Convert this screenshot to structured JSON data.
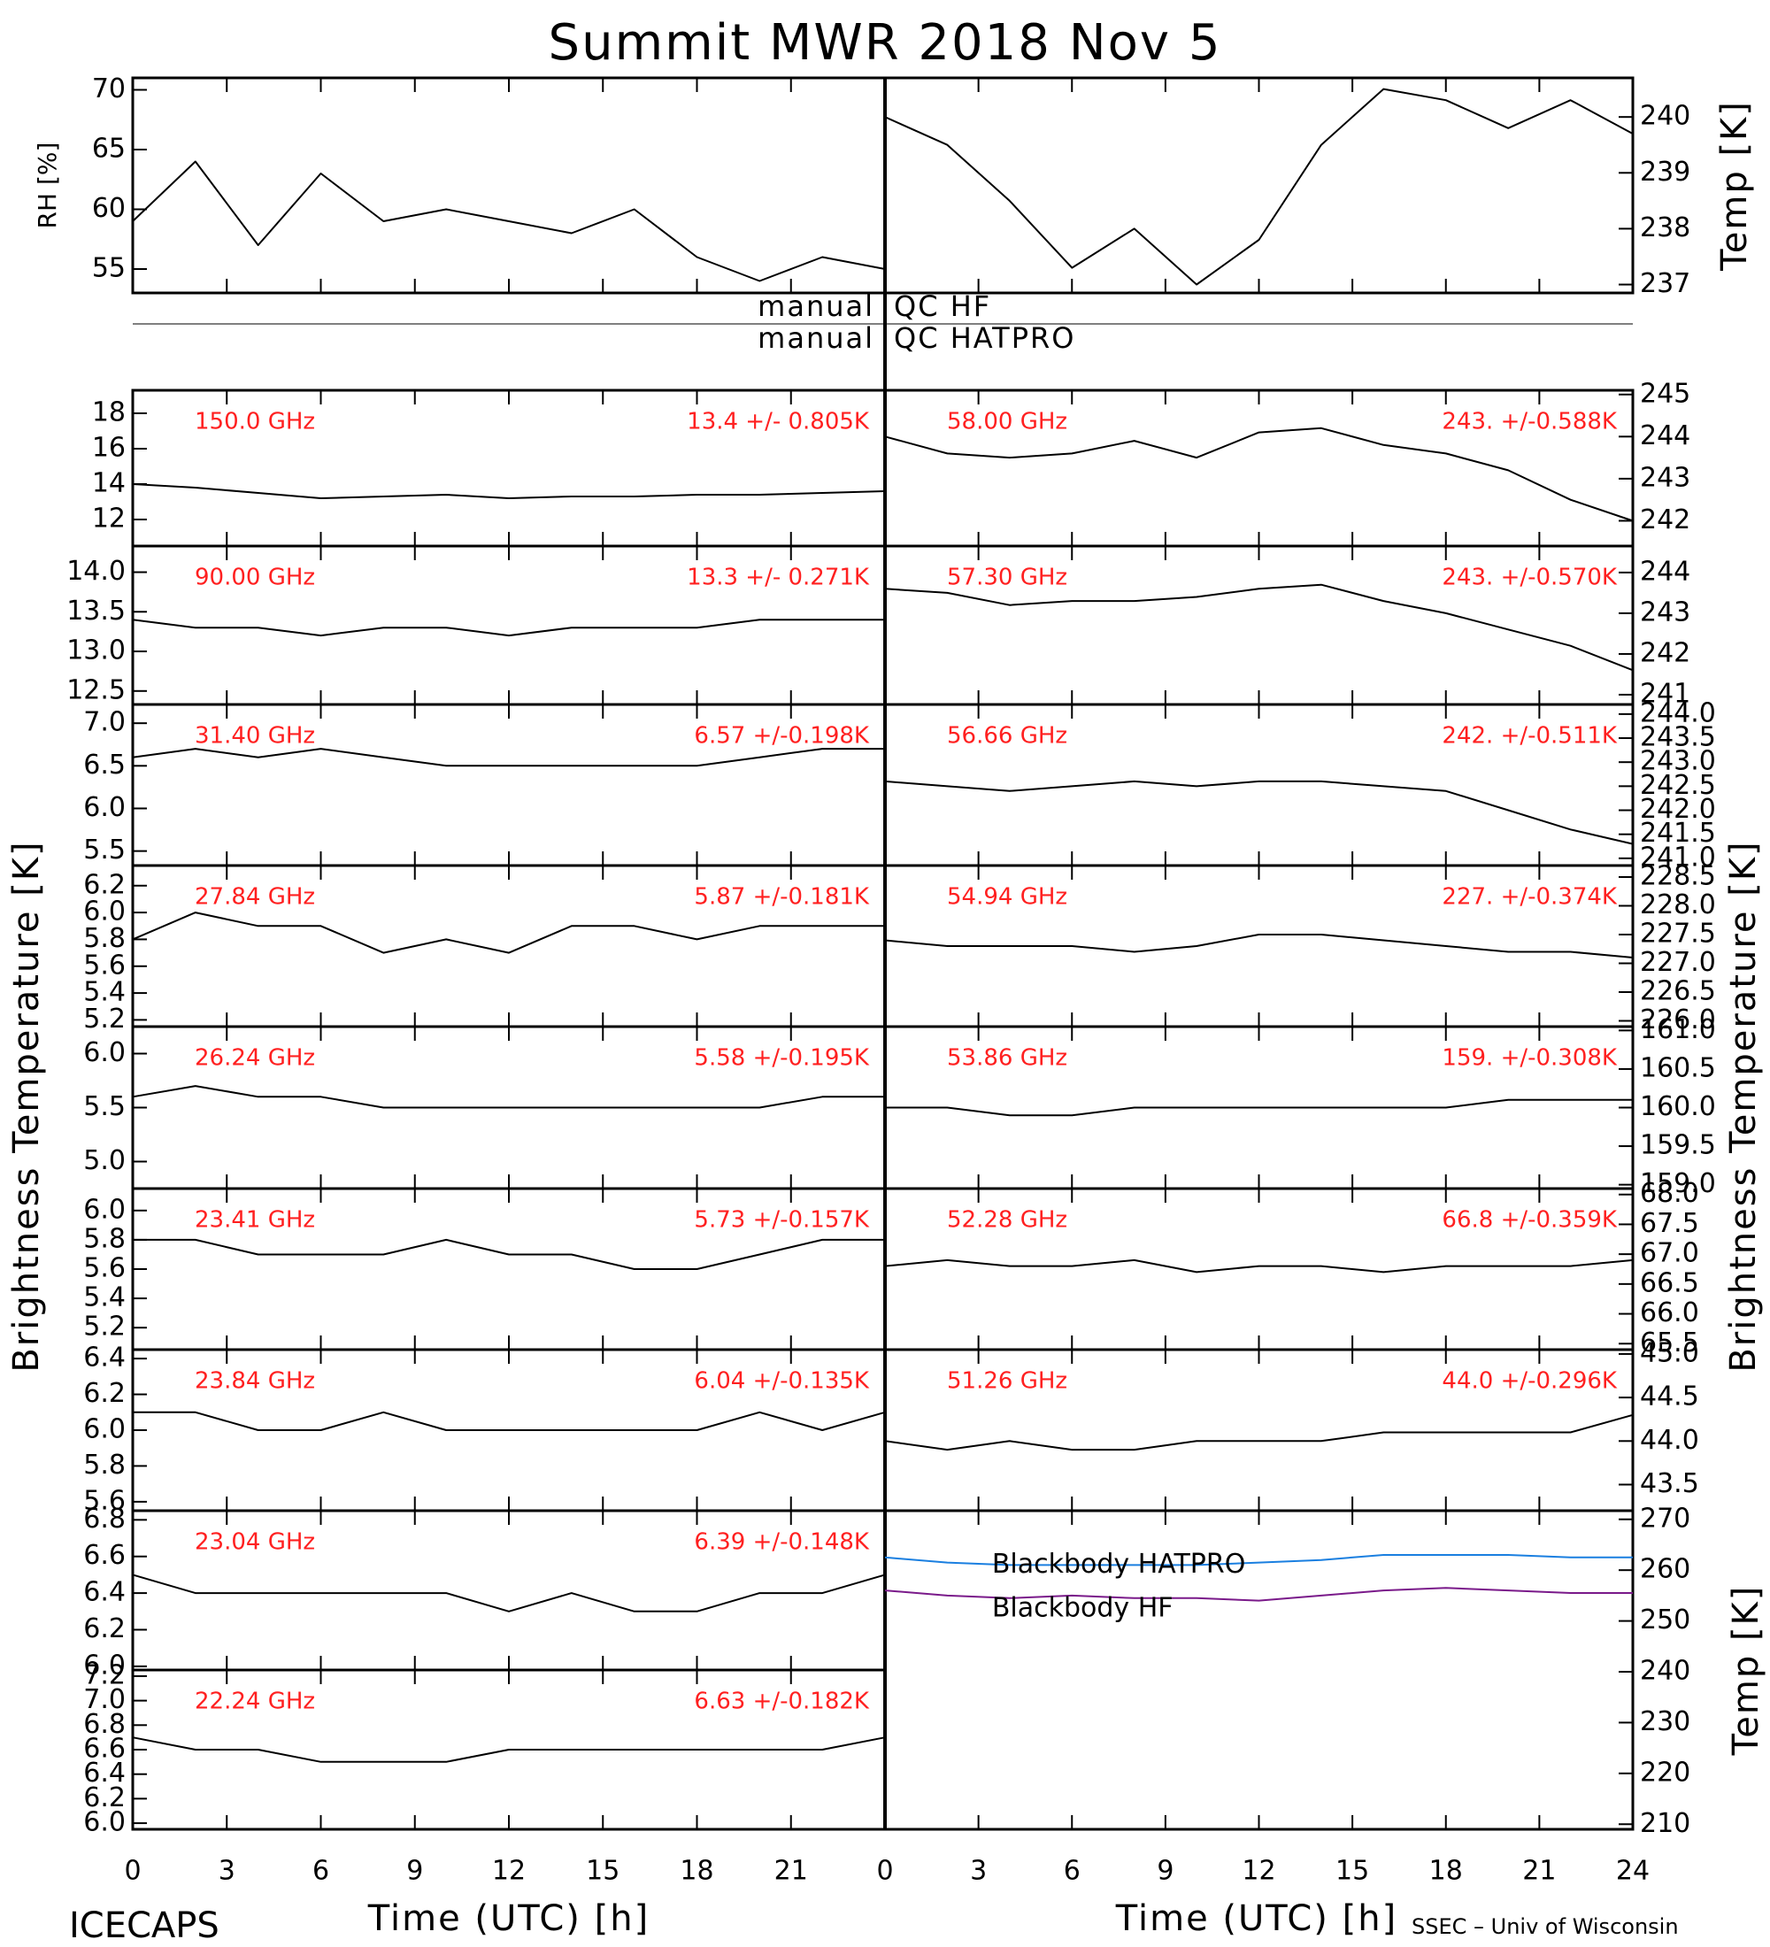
{
  "title": "Summit MWR 2018 Nov  5",
  "labels": {
    "x_left": "Time (UTC) [h]",
    "x_right": "Time (UTC) [h]",
    "y_left": "Brightness Temperature [K]",
    "y_right": "Brightness Temperature [K]"
  },
  "qc": {
    "hf": {
      "left": "manual",
      "right": "QC HF"
    },
    "hatpro": {
      "left": "manual",
      "right": "QC HATPRO"
    }
  },
  "footer": {
    "left": "ICECAPS",
    "right": "SSEC – Univ of Wisconsin"
  },
  "chart_data": [
    {
      "type": "line",
      "ylabel": "RH [%]",
      "color": "#000000",
      "x": [
        0,
        2,
        4,
        6,
        8,
        10,
        12,
        14,
        16,
        18,
        20,
        22,
        24
      ],
      "values": [
        59,
        64,
        57,
        63,
        59,
        60,
        59,
        58,
        60,
        56,
        54,
        56,
        55
      ],
      "xlim": [
        0,
        24
      ],
      "ylim": [
        53,
        71
      ],
      "yticks": [
        55,
        60,
        65,
        70
      ]
    },
    {
      "type": "line",
      "ylabel": "Temp [K]",
      "color": "#000000",
      "x": [
        0,
        2,
        4,
        6,
        8,
        10,
        12,
        14,
        16,
        18,
        20,
        22,
        24
      ],
      "values": [
        240.0,
        239.5,
        238.5,
        237.3,
        238.0,
        237.0,
        237.8,
        239.5,
        240.5,
        240.3,
        239.8,
        240.3,
        239.7
      ],
      "xlim": [
        0,
        24
      ],
      "ylim": [
        236.85,
        240.7
      ],
      "yticks": [
        237,
        238,
        239,
        240
      ]
    },
    {
      "type": "line",
      "label": "150.0 GHz",
      "stats": "13.4 +/- 0.805K",
      "color": "#000000",
      "x": [
        0,
        2,
        4,
        6,
        8,
        10,
        12,
        14,
        16,
        18,
        20,
        22,
        24
      ],
      "values": [
        14.0,
        13.8,
        13.5,
        13.2,
        13.3,
        13.4,
        13.2,
        13.3,
        13.3,
        13.4,
        13.4,
        13.5,
        13.6
      ],
      "xlim": [
        0,
        24
      ],
      "ylim": [
        10.5,
        19.3
      ],
      "yticks": [
        12,
        14,
        16,
        18
      ]
    },
    {
      "type": "line",
      "label": "58.00 GHz",
      "stats": "243. +/-0.588K",
      "color": "#000000",
      "x": [
        0,
        2,
        4,
        6,
        8,
        10,
        12,
        14,
        16,
        18,
        20,
        22,
        24
      ],
      "values": [
        244.0,
        243.6,
        243.5,
        243.6,
        243.9,
        243.5,
        244.1,
        244.2,
        243.8,
        243.6,
        243.2,
        242.5,
        242.0
      ],
      "xlim": [
        0,
        24
      ],
      "ylim": [
        241.4,
        245.1
      ],
      "yticks": [
        242,
        243,
        244,
        245
      ]
    },
    {
      "type": "line",
      "label": "90.00 GHz",
      "stats": "13.3 +/- 0.271K",
      "color": "#000000",
      "x": [
        0,
        2,
        4,
        6,
        8,
        10,
        12,
        14,
        16,
        18,
        20,
        22,
        24
      ],
      "values": [
        13.4,
        13.3,
        13.3,
        13.2,
        13.3,
        13.3,
        13.2,
        13.3,
        13.3,
        13.3,
        13.4,
        13.4,
        13.4
      ],
      "xlim": [
        0,
        24
      ],
      "ylim": [
        12.33,
        14.33
      ],
      "yticks": [
        12.5,
        {
          "value": 13,
          "label": "13.0"
        },
        13.5,
        {
          "value": 14,
          "label": "14.0"
        }
      ]
    },
    {
      "type": "line",
      "label": "57.30 GHz",
      "stats": "243. +/-0.570K",
      "color": "#000000",
      "x": [
        0,
        2,
        4,
        6,
        8,
        10,
        12,
        14,
        16,
        18,
        20,
        22,
        24
      ],
      "values": [
        243.6,
        243.5,
        243.2,
        243.3,
        243.3,
        243.4,
        243.6,
        243.7,
        243.3,
        243.0,
        242.6,
        242.2,
        241.6
      ],
      "xlim": [
        0,
        24
      ],
      "ylim": [
        240.76,
        244.65
      ],
      "yticks": [
        241,
        242,
        243,
        244
      ]
    },
    {
      "type": "line",
      "label": "31.40 GHz",
      "stats": "6.57 +/-0.198K",
      "color": "#000000",
      "x": [
        0,
        2,
        4,
        6,
        8,
        10,
        12,
        14,
        16,
        18,
        20,
        22,
        24
      ],
      "values": [
        6.6,
        6.7,
        6.6,
        6.7,
        6.6,
        6.5,
        6.5,
        6.5,
        6.5,
        6.5,
        6.6,
        6.7,
        6.7
      ],
      "xlim": [
        0,
        24
      ],
      "ylim": [
        5.33,
        7.22
      ],
      "yticks": [
        5.5,
        {
          "value": 6,
          "label": "6.0"
        },
        6.5,
        {
          "value": 7,
          "label": "7.0"
        }
      ]
    },
    {
      "type": "line",
      "label": "56.66 GHz",
      "stats": "242. +/-0.511K",
      "color": "#000000",
      "x": [
        0,
        2,
        4,
        6,
        8,
        10,
        12,
        14,
        16,
        18,
        20,
        22,
        24
      ],
      "values": [
        242.6,
        242.5,
        242.4,
        242.5,
        242.6,
        242.5,
        242.6,
        242.6,
        242.5,
        242.4,
        242.0,
        241.6,
        241.3
      ],
      "xlim": [
        0,
        24
      ],
      "ylim": [
        240.85,
        244.2
      ],
      "yticks": [
        {
          "value": 241,
          "label": "241.0"
        },
        241.5,
        {
          "value": 242,
          "label": "242.0"
        },
        242.5,
        {
          "value": 243,
          "label": "243.0"
        },
        243.5,
        {
          "value": 244,
          "label": "244.0"
        }
      ]
    },
    {
      "type": "line",
      "label": "27.84 GHz",
      "stats": "5.87 +/-0.181K",
      "color": "#000000",
      "x": [
        0,
        2,
        4,
        6,
        8,
        10,
        12,
        14,
        16,
        18,
        20,
        22,
        24
      ],
      "values": [
        5.8,
        6.0,
        5.9,
        5.9,
        5.7,
        5.8,
        5.7,
        5.9,
        5.9,
        5.8,
        5.9,
        5.9,
        5.9
      ],
      "xlim": [
        0,
        24
      ],
      "ylim": [
        5.15,
        6.35
      ],
      "yticks": [
        5.2,
        5.4,
        5.6,
        5.8,
        {
          "value": 6,
          "label": "6.0"
        },
        6.2
      ]
    },
    {
      "type": "line",
      "label": "54.94 GHz",
      "stats": "227. +/-0.374K",
      "color": "#000000",
      "x": [
        0,
        2,
        4,
        6,
        8,
        10,
        12,
        14,
        16,
        18,
        20,
        22,
        24
      ],
      "values": [
        227.4,
        227.3,
        227.3,
        227.3,
        227.2,
        227.3,
        227.5,
        227.5,
        227.4,
        227.3,
        227.2,
        227.2,
        227.1
      ],
      "xlim": [
        0,
        24
      ],
      "ylim": [
        225.9,
        228.7
      ],
      "yticks": [
        {
          "value": 226,
          "label": "226.0"
        },
        226.5,
        {
          "value": 227,
          "label": "227.0"
        },
        227.5,
        {
          "value": 228,
          "label": "228.0"
        },
        228.5
      ]
    },
    {
      "type": "line",
      "label": "26.24 GHz",
      "stats": "5.58 +/-0.195K",
      "color": "#000000",
      "x": [
        0,
        2,
        4,
        6,
        8,
        10,
        12,
        14,
        16,
        18,
        20,
        22,
        24
      ],
      "values": [
        5.6,
        5.7,
        5.6,
        5.6,
        5.5,
        5.5,
        5.5,
        5.5,
        5.5,
        5.5,
        5.5,
        5.6,
        5.6
      ],
      "xlim": [
        0,
        24
      ],
      "ylim": [
        4.75,
        6.25
      ],
      "yticks": [
        {
          "value": 5,
          "label": "5.0"
        },
        5.5,
        {
          "value": 6,
          "label": "6.0"
        }
      ]
    },
    {
      "type": "line",
      "label": "53.86 GHz",
      "stats": "159. +/-0.308K",
      "color": "#000000",
      "x": [
        0,
        2,
        4,
        6,
        8,
        10,
        12,
        14,
        16,
        18,
        20,
        22,
        24
      ],
      "values": [
        160.0,
        160.0,
        159.9,
        159.9,
        160.0,
        160.0,
        160.0,
        160.0,
        160.0,
        160.0,
        160.1,
        160.1,
        160.1
      ],
      "xlim": [
        0,
        24
      ],
      "ylim": [
        158.95,
        161.05
      ],
      "yticks": [
        {
          "value": 159,
          "label": "159.0"
        },
        159.5,
        {
          "value": 160,
          "label": "160.0"
        },
        160.5,
        {
          "value": 161,
          "label": "161.0"
        }
      ]
    },
    {
      "type": "line",
      "label": "23.41 GHz",
      "stats": "5.73 +/-0.157K",
      "color": "#000000",
      "x": [
        0,
        2,
        4,
        6,
        8,
        10,
        12,
        14,
        16,
        18,
        20,
        22,
        24
      ],
      "values": [
        5.8,
        5.8,
        5.7,
        5.7,
        5.7,
        5.8,
        5.7,
        5.7,
        5.6,
        5.6,
        5.7,
        5.8,
        5.8
      ],
      "xlim": [
        0,
        24
      ],
      "ylim": [
        5.05,
        6.15
      ],
      "yticks": [
        5.2,
        5.4,
        5.6,
        5.8,
        {
          "value": 6,
          "label": "6.0"
        }
      ]
    },
    {
      "type": "line",
      "label": "52.28 GHz",
      "stats": "66.8 +/-0.359K",
      "color": "#000000",
      "x": [
        0,
        2,
        4,
        6,
        8,
        10,
        12,
        14,
        16,
        18,
        20,
        22,
        24
      ],
      "values": [
        66.8,
        66.9,
        66.8,
        66.8,
        66.9,
        66.7,
        66.8,
        66.8,
        66.7,
        66.8,
        66.8,
        66.8,
        66.9
      ],
      "xlim": [
        0,
        24
      ],
      "ylim": [
        65.4,
        68.1
      ],
      "yticks": [
        65.5,
        {
          "value": 66,
          "label": "66.0"
        },
        66.5,
        {
          "value": 67,
          "label": "67.0"
        },
        67.5,
        {
          "value": 68,
          "label": "68.0"
        }
      ]
    },
    {
      "type": "line",
      "label": "23.84 GHz",
      "stats": "6.04 +/-0.135K",
      "color": "#000000",
      "x": [
        0,
        2,
        4,
        6,
        8,
        10,
        12,
        14,
        16,
        18,
        20,
        22,
        24
      ],
      "values": [
        6.1,
        6.1,
        6.0,
        6.0,
        6.1,
        6.0,
        6.0,
        6.0,
        6.0,
        6.0,
        6.1,
        6.0,
        6.1
      ],
      "xlim": [
        0,
        24
      ],
      "ylim": [
        5.55,
        6.45
      ],
      "yticks": [
        5.6,
        5.8,
        {
          "value": 6,
          "label": "6.0"
        },
        6.2,
        6.4
      ]
    },
    {
      "type": "line",
      "label": "51.26 GHz",
      "stats": "44.0 +/-0.296K",
      "color": "#000000",
      "x": [
        0,
        2,
        4,
        6,
        8,
        10,
        12,
        14,
        16,
        18,
        20,
        22,
        24
      ],
      "values": [
        44.0,
        43.9,
        44.0,
        43.9,
        43.9,
        44.0,
        44.0,
        44.0,
        44.1,
        44.1,
        44.1,
        44.1,
        44.3
      ],
      "xlim": [
        0,
        24
      ],
      "ylim": [
        43.2,
        45.05
      ],
      "yticks": [
        43.5,
        {
          "value": 44,
          "label": "44.0"
        },
        44.5,
        {
          "value": 45,
          "label": "45.0"
        }
      ]
    },
    {
      "type": "line",
      "label": "23.04 GHz",
      "stats": "6.39 +/-0.148K",
      "color": "#000000",
      "x": [
        0,
        2,
        4,
        6,
        8,
        10,
        12,
        14,
        16,
        18,
        20,
        22,
        24
      ],
      "values": [
        6.5,
        6.4,
        6.4,
        6.4,
        6.4,
        6.4,
        6.3,
        6.4,
        6.3,
        6.3,
        6.4,
        6.4,
        6.5
      ],
      "xlim": [
        0,
        24
      ],
      "ylim": [
        5.98,
        6.85
      ],
      "yticks": [
        {
          "value": 6,
          "label": "6.0"
        },
        6.2,
        6.4,
        6.6,
        6.8
      ]
    },
    {
      "type": "line",
      "ylabel": "Temp [K]",
      "x": [
        0,
        2,
        4,
        6,
        8,
        10,
        12,
        14,
        16,
        18,
        20,
        22,
        24
      ],
      "series": [
        {
          "name": "Blackbody HATPRO",
          "color": "#1a7fe0",
          "values": [
            262.5,
            261.5,
            261,
            261,
            261,
            261,
            261.5,
            262,
            263,
            263,
            263,
            262.5,
            262.5
          ]
        },
        {
          "name": "Blackbody HF",
          "color": "#7a1a8a",
          "values": [
            256,
            255,
            254.5,
            255,
            254.5,
            254.5,
            254,
            255,
            256,
            256.5,
            256,
            255.5,
            255.5
          ]
        }
      ],
      "xlim": [
        0,
        24
      ],
      "ylim": [
        209,
        271.7
      ],
      "yticks": [
        210,
        220,
        230,
        240,
        250,
        260,
        270
      ],
      "xticks": [
        0,
        3,
        6,
        9,
        12,
        15,
        18,
        21,
        24
      ]
    },
    {
      "type": "line",
      "label": "22.24 GHz",
      "stats": "6.63 +/-0.182K",
      "color": "#000000",
      "x": [
        0,
        2,
        4,
        6,
        8,
        10,
        12,
        14,
        16,
        18,
        20,
        22,
        24
      ],
      "values": [
        6.7,
        6.6,
        6.6,
        6.5,
        6.5,
        6.5,
        6.6,
        6.6,
        6.6,
        6.6,
        6.6,
        6.6,
        6.7
      ],
      "xlim": [
        0,
        24
      ],
      "ylim": [
        5.95,
        7.25
      ],
      "yticks": [
        {
          "value": 6,
          "label": "6.0"
        },
        6.2,
        6.4,
        6.6,
        6.8,
        {
          "value": 7,
          "label": "7.0"
        },
        7.2
      ],
      "xticks": [
        0,
        3,
        6,
        9,
        12,
        15,
        18,
        21
      ]
    }
  ]
}
